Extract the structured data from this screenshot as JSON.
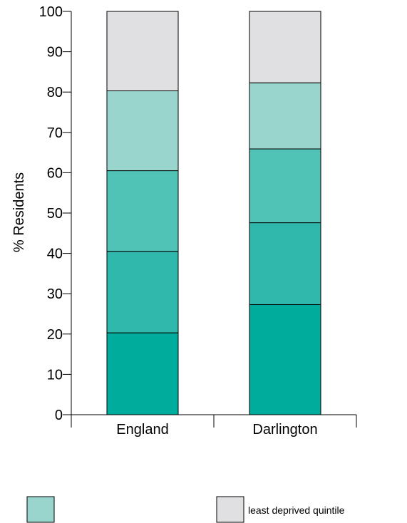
{
  "chart_data": {
    "type": "bar",
    "stacked": true,
    "title": "",
    "xlabel": "",
    "ylabel": "% Residents",
    "ylim": [
      0,
      100
    ],
    "yticks": [
      0,
      10,
      20,
      30,
      40,
      50,
      60,
      70,
      80,
      90,
      100
    ],
    "categories": [
      "England",
      "Darlington"
    ],
    "grid": false,
    "series": [
      {
        "values": [
          20.3,
          27.3
        ],
        "color": "#00ac9c"
      },
      {
        "values": [
          20.2,
          20.3
        ],
        "color": "#2fb8ab"
      },
      {
        "values": [
          20.0,
          18.3
        ],
        "color": "#50c3b6"
      },
      {
        "values": [
          19.8,
          16.4
        ],
        "color": "#9ad5cd"
      },
      {
        "name": "least deprived quintile",
        "values": [
          19.7,
          17.7
        ],
        "color": "#e0e0e2"
      }
    ],
    "legend": [
      {
        "label": "",
        "color": "#9ad5cd"
      },
      {
        "label": "least deprived quintile",
        "color": "#e0e0e2"
      }
    ]
  }
}
